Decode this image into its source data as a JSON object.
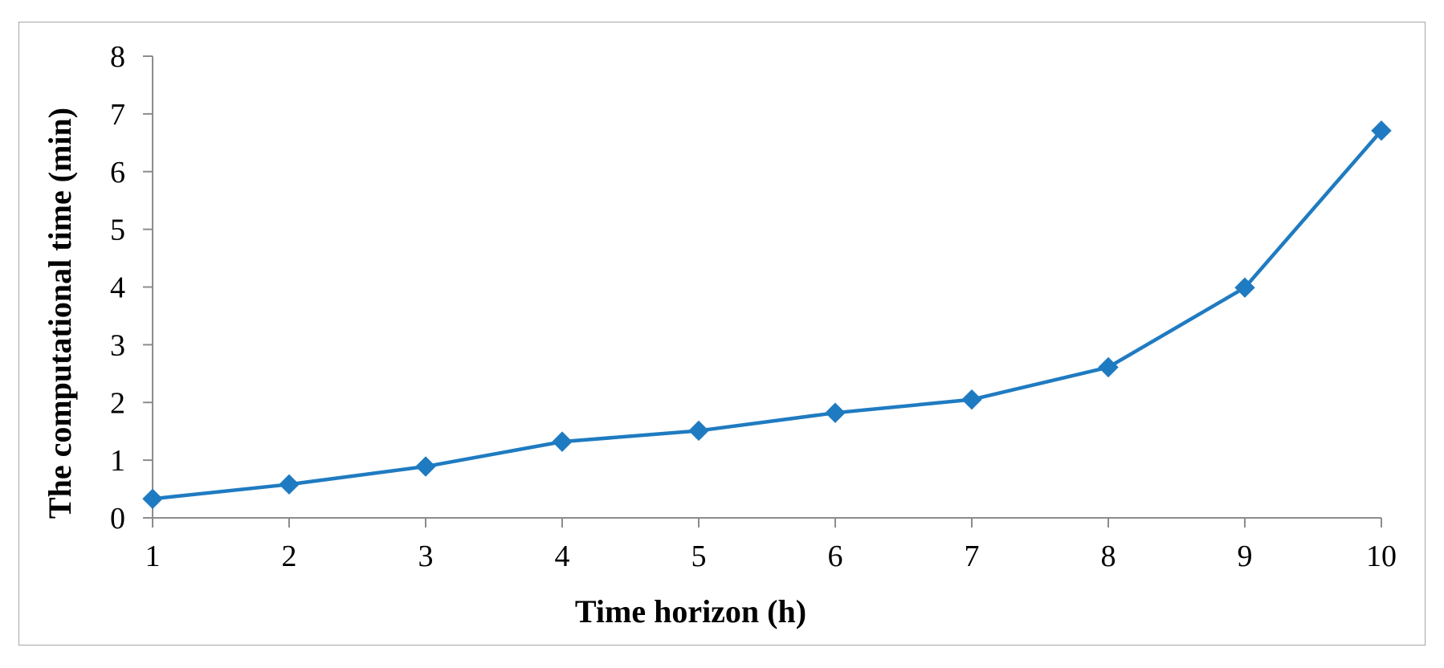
{
  "chart_data": {
    "type": "line",
    "title": "",
    "xlabel": "Time horizon (h)",
    "ylabel": "The computational time (min)",
    "x": [
      1,
      2,
      3,
      4,
      5,
      6,
      7,
      8,
      9,
      10
    ],
    "x_tick_labels": [
      "1",
      "2",
      "3",
      "4",
      "5",
      "6",
      "7",
      "8",
      "9",
      "10"
    ],
    "y_tick_labels": [
      "0",
      "1",
      "2",
      "3",
      "4",
      "5",
      "6",
      "7",
      "8"
    ],
    "y_ticks": [
      0,
      1,
      2,
      3,
      4,
      5,
      6,
      7,
      8
    ],
    "xlim": [
      1,
      10
    ],
    "ylim": [
      0,
      8
    ],
    "grid": false,
    "legend": "none",
    "marker": "diamond",
    "series": [
      {
        "color": "#1f7bc1",
        "values": [
          0.33,
          0.58,
          0.89,
          1.32,
          1.51,
          1.82,
          2.05,
          2.61,
          3.99,
          6.71
        ]
      }
    ],
    "axis_color": "#8c8c8c"
  }
}
